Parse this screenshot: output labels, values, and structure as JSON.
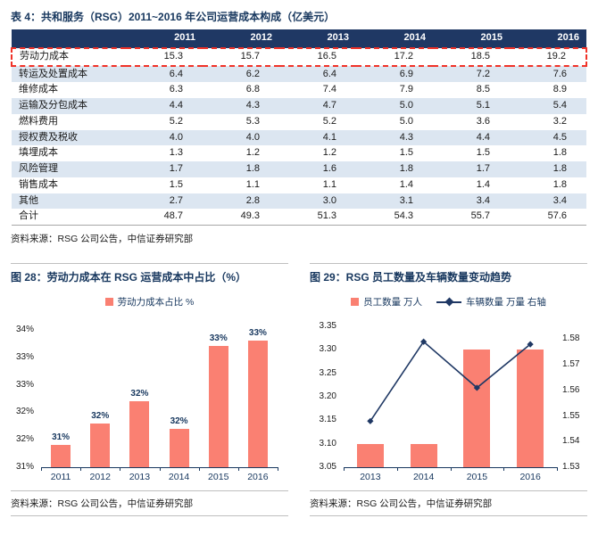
{
  "colors": {
    "navy": "#17375E",
    "header_bg": "#1F3864",
    "row_alt": "#DCE6F1",
    "bar": "#FA8072",
    "line": "#1F3864",
    "highlight_border": "#F03228",
    "rule": "#BFBFBF"
  },
  "table": {
    "title": "表 4：共和服务（RSG）2011~2016 年公司运营成本构成（亿美元）",
    "years": [
      "2011",
      "2012",
      "2013",
      "2014",
      "2015",
      "2016"
    ],
    "rows": [
      {
        "label": "劳动力成本",
        "values": [
          "15.3",
          "15.7",
          "16.5",
          "17.2",
          "18.5",
          "19.2"
        ],
        "highlight": true
      },
      {
        "label": "转运及处置成本",
        "values": [
          "6.4",
          "6.2",
          "6.4",
          "6.9",
          "7.2",
          "7.6"
        ]
      },
      {
        "label": "维修成本",
        "values": [
          "6.3",
          "6.8",
          "7.4",
          "7.9",
          "8.5",
          "8.9"
        ]
      },
      {
        "label": "运输及分包成本",
        "values": [
          "4.4",
          "4.3",
          "4.7",
          "5.0",
          "5.1",
          "5.4"
        ]
      },
      {
        "label": "燃料费用",
        "values": [
          "5.2",
          "5.3",
          "5.2",
          "5.0",
          "3.6",
          "3.2"
        ]
      },
      {
        "label": "授权费及税收",
        "values": [
          "4.0",
          "4.0",
          "4.1",
          "4.3",
          "4.4",
          "4.5"
        ]
      },
      {
        "label": "填埋成本",
        "values": [
          "1.3",
          "1.2",
          "1.2",
          "1.5",
          "1.5",
          "1.8"
        ]
      },
      {
        "label": "风险管理",
        "values": [
          "1.7",
          "1.8",
          "1.6",
          "1.8",
          "1.7",
          "1.8"
        ]
      },
      {
        "label": "销售成本",
        "values": [
          "1.5",
          "1.1",
          "1.1",
          "1.4",
          "1.4",
          "1.8"
        ]
      },
      {
        "label": "其他",
        "values": [
          "2.7",
          "2.8",
          "3.0",
          "3.1",
          "3.4",
          "3.4"
        ]
      },
      {
        "label": "合计",
        "values": [
          "48.7",
          "49.3",
          "51.3",
          "54.3",
          "55.7",
          "57.6"
        ]
      }
    ],
    "source": "资料来源：RSG 公司公告，中信证券研究部"
  },
  "chart_data": [
    {
      "type": "bar",
      "title": "图 28：劳动力成本在 RSG 运营成本中占比（%）",
      "legend": [
        "劳动力成本占比 %"
      ],
      "legend_position": "top",
      "grid": false,
      "categories": [
        "2011",
        "2012",
        "2013",
        "2014",
        "2015",
        "2016"
      ],
      "values": [
        31.4,
        31.8,
        32.2,
        31.7,
        33.2,
        33.3
      ],
      "bar_labels": [
        "31%",
        "32%",
        "32%",
        "32%",
        "33%",
        "33%"
      ],
      "xlabel": "",
      "ylabel": "",
      "axis": {
        "min": 31,
        "max": 33.5,
        "tick_values": [
          31,
          31.5,
          32,
          32.5,
          33,
          33.5
        ],
        "tick_labels": [
          "31%",
          "32%",
          "32%",
          "33%",
          "33%",
          "34%"
        ]
      },
      "source": "资料来源：RSG 公司公告，中信证券研究部"
    },
    {
      "type": "bar",
      "title": "图 29：RSG 员工数量及车辆数量变动趋势",
      "legend_position": "top",
      "grid": false,
      "categories": [
        "2013",
        "2014",
        "2015",
        "2016"
      ],
      "series": [
        {
          "name": "员工数量 万人",
          "kind": "bar",
          "axis": "left",
          "values": [
            3.1,
            3.1,
            3.3,
            3.3
          ]
        },
        {
          "name": "车辆数量 万量 右轴",
          "kind": "line",
          "axis": "right",
          "values": [
            1.548,
            1.579,
            1.561,
            1.578
          ]
        }
      ],
      "left_axis": {
        "min": 3.05,
        "max": 3.35,
        "tick_values": [
          3.05,
          3.1,
          3.15,
          3.2,
          3.25,
          3.3,
          3.35
        ],
        "tick_labels": [
          "3.05",
          "3.10",
          "3.15",
          "3.20",
          "3.25",
          "3.30",
          "3.35"
        ]
      },
      "right_axis": {
        "min": 1.53,
        "max": 1.585,
        "tick_values": [
          1.53,
          1.54,
          1.55,
          1.56,
          1.57,
          1.58
        ],
        "tick_labels": [
          "1.53",
          "1.54",
          "1.55",
          "1.56",
          "1.57",
          "1.58"
        ]
      },
      "source": "资料来源：RSG 公司公告，中信证券研究部"
    }
  ]
}
